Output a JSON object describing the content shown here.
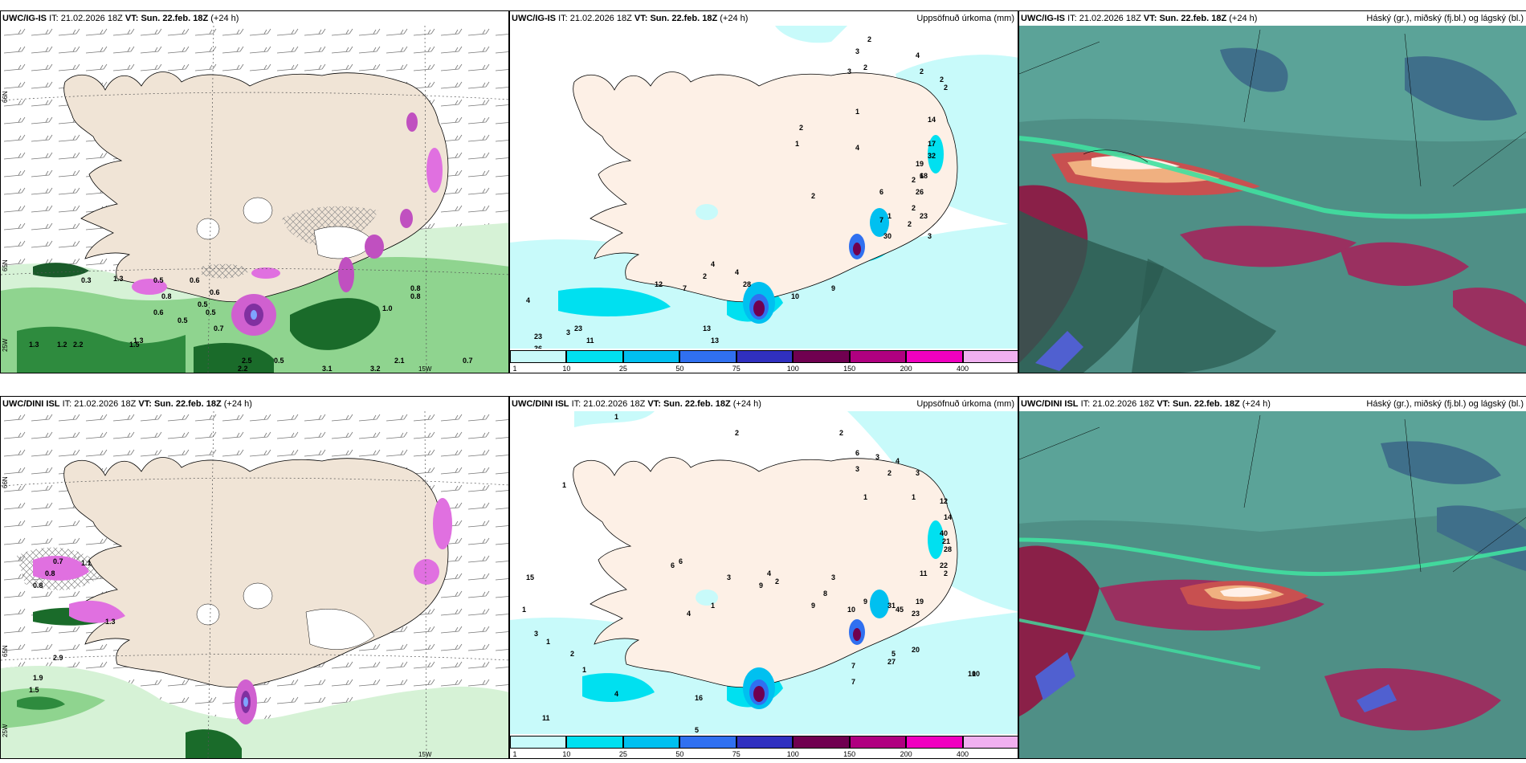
{
  "panels": {
    "p1": {
      "model": "UWC/IG-IS",
      "it_label": "IT:",
      "it": "21.02.2026 18Z",
      "vt_label": "VT:",
      "vt": "Sun. 22.feb. 18Z",
      "lead": "(+24 h)",
      "right_title": ""
    },
    "p2": {
      "model": "UWC/IG-IS",
      "it_label": "IT:",
      "it": "21.02.2026 18Z",
      "vt_label": "VT:",
      "vt": "Sun. 22.feb. 18Z",
      "lead": "(+24 h)",
      "right_title": "Uppsöfnuð úrkoma (mm)"
    },
    "p3": {
      "model": "UWC/IG-IS",
      "it_label": "IT:",
      "it": "21.02.2026 18Z",
      "vt_label": "VT:",
      "vt": "Sun. 22.feb. 18Z",
      "lead": "(+24 h)",
      "right_title": "Háský (gr.), miðský (fj.bl.) og lágský (bl.)"
    },
    "p4": {
      "model": "UWC/DINI ISL",
      "it_label": "IT:",
      "it": "21.02.2026 18Z",
      "vt_label": "VT:",
      "vt": "Sun. 22.feb. 18Z",
      "lead": "(+24 h)",
      "right_title": ""
    },
    "p5": {
      "model": "UWC/DINI ISL",
      "it_label": "IT:",
      "it": "21.02.2026 18Z",
      "vt_label": "VT:",
      "vt": "Sun. 22.feb. 18Z",
      "lead": "(+24 h)",
      "right_title": "Uppsöfnuð úrkoma (mm)"
    },
    "p6": {
      "model": "UWC/DINI ISL",
      "it_label": "IT:",
      "it": "21.02.2026 18Z",
      "vt_label": "VT:",
      "vt": "Sun. 22.feb. 18Z",
      "lead": "(+24 h)",
      "right_title": "Háský (gr.), miðský (fj.bl.) og lágský (bl.)"
    }
  },
  "colorbar": {
    "ticks": [
      "1",
      "10",
      "25",
      "50",
      "75",
      "100",
      "150",
      "200",
      "400"
    ],
    "colors": [
      "#c8fafa",
      "#00e0f0",
      "#00c0f0",
      "#3070f0",
      "#3030c0",
      "#700050",
      "#b00080",
      "#f000c0",
      "#f0b0f0"
    ]
  },
  "axis_labels": {
    "lat66": "66N",
    "lat65": "65N",
    "lat64": "64N",
    "lon25": "25W",
    "lon15": "15W"
  },
  "precip_values_top": [
    "2",
    "3",
    "3",
    "2",
    "4",
    "2",
    "2",
    "2",
    "1",
    "2",
    "1",
    "14",
    "17",
    "32",
    "19",
    "18",
    "4",
    "2",
    "2",
    "1",
    "2",
    "6",
    "2",
    "6",
    "7",
    "26",
    "30",
    "23",
    "3",
    "2",
    "4",
    "4",
    "7",
    "9",
    "10",
    "4",
    "12",
    "28",
    "23",
    "13",
    "13",
    "23",
    "36",
    "11",
    "3"
  ],
  "precip_values_bottom": [
    "1",
    "2",
    "2",
    "6",
    "3",
    "4",
    "3",
    "2",
    "3",
    "1",
    "1",
    "12",
    "14",
    "40",
    "21",
    "28",
    "22",
    "11",
    "2",
    "9",
    "3",
    "8",
    "9",
    "10",
    "45",
    "19",
    "23",
    "31",
    "16",
    "11",
    "4",
    "5",
    "7",
    "7",
    "10",
    "10",
    "5",
    "20",
    "27",
    "15",
    "4",
    "9",
    "3",
    "1",
    "1",
    "2",
    "1",
    "2",
    "4",
    "3",
    "1",
    "1",
    "6",
    "6"
  ],
  "temp_values_top": [
    "0.3",
    "1.3",
    "0.5",
    "0.8",
    "0.5",
    "0.6",
    "0.6",
    "0.5",
    "0.7",
    "0.8",
    "2.5",
    "2.2",
    "0.5",
    "3.1",
    "3.2",
    "2.1",
    "1.0",
    "0.8",
    "0.7",
    "1.3",
    "1.2",
    "2.2",
    "1.5",
    "1.3",
    "0.6",
    "0.5"
  ],
  "temp_values_bottom": [
    "0.7",
    "1.1",
    "0.8",
    "0.8",
    "1.3",
    "2.9",
    "1.9",
    "1.5",
    "0.1"
  ]
}
